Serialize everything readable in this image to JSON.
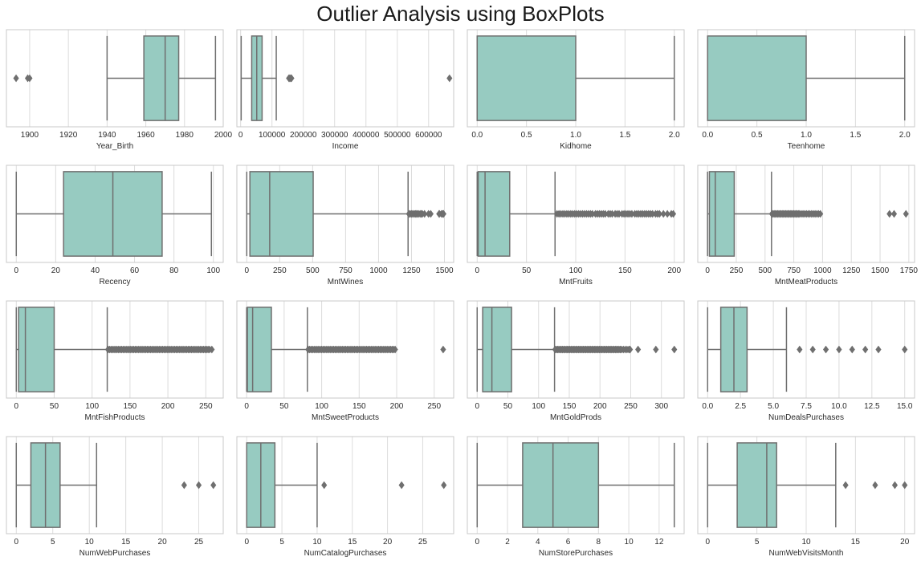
{
  "title": "Outlier Analysis using BoxPlots",
  "colors": {
    "box_fill": "#97cbc1",
    "line": "#6f6f6f",
    "grid": "#dcdcdc",
    "frame": "#c8c8c8",
    "text": "#2b2b2b"
  },
  "chart_data": [
    {
      "type": "box",
      "xlabel": "Year_Birth",
      "xlim": [
        1888,
        2000
      ],
      "ticks": [
        1900,
        1920,
        1940,
        1960,
        1980,
        2000
      ],
      "box": {
        "whisker_low": 1940,
        "q1": 1959,
        "median": 1970,
        "q3": 1977,
        "whisker_high": 1996
      },
      "outliers": [
        1893,
        1899,
        1900
      ]
    },
    {
      "type": "box",
      "xlabel": "Income",
      "xlim": [
        -12000,
        680000
      ],
      "ticks": [
        0,
        100000,
        200000,
        300000,
        400000,
        500000,
        600000
      ],
      "box": {
        "whisker_low": 1730,
        "q1": 35300,
        "median": 51400,
        "q3": 68500,
        "whisker_high": 113700
      },
      "outliers": [
        153924,
        156924,
        157146,
        157243,
        160803,
        162397,
        666666
      ]
    },
    {
      "type": "box",
      "xlabel": "Kidhome",
      "xlim": [
        -0.1,
        2.1
      ],
      "ticks": [
        0.0,
        0.5,
        1.0,
        1.5,
        2.0
      ],
      "box": {
        "whisker_low": 0,
        "q1": 0,
        "median": 0,
        "q3": 1,
        "whisker_high": 2
      },
      "outliers": []
    },
    {
      "type": "box",
      "xlabel": "Teenhome",
      "xlim": [
        -0.1,
        2.1
      ],
      "ticks": [
        0.0,
        0.5,
        1.0,
        1.5,
        2.0
      ],
      "box": {
        "whisker_low": 0,
        "q1": 0,
        "median": 0,
        "q3": 1,
        "whisker_high": 2
      },
      "outliers": []
    },
    {
      "type": "box",
      "xlabel": "Recency",
      "xlim": [
        -5,
        105
      ],
      "ticks": [
        0,
        20,
        40,
        60,
        80,
        100
      ],
      "box": {
        "whisker_low": 0,
        "q1": 24,
        "median": 49,
        "q3": 74,
        "whisker_high": 99
      },
      "outliers": []
    },
    {
      "type": "box",
      "xlabel": "MntWines",
      "xlim": [
        -75,
        1570
      ],
      "ticks": [
        0,
        250,
        500,
        750,
        1000,
        1250,
        1500
      ],
      "box": {
        "whisker_low": 0,
        "q1": 24,
        "median": 174,
        "q3": 504,
        "whisker_high": 1224
      },
      "outliers": [
        1230,
        1240,
        1250,
        1259,
        1270,
        1279,
        1285,
        1296,
        1302,
        1315,
        1324,
        1332,
        1349,
        1379,
        1396,
        1459,
        1462,
        1478,
        1486,
        1492,
        1493
      ]
    },
    {
      "type": "box",
      "xlabel": "MntFruits",
      "xlim": [
        -10,
        210
      ],
      "ticks": [
        0,
        50,
        100,
        150,
        200
      ],
      "box": {
        "whisker_low": 0,
        "q1": 1,
        "median": 8,
        "q3": 33,
        "whisker_high": 79
      },
      "outliers": [
        81,
        83,
        85,
        87,
        89,
        91,
        93,
        95,
        97,
        99,
        101,
        103,
        105,
        107,
        109,
        111,
        113,
        115,
        117,
        120,
        122,
        124,
        126,
        128,
        130,
        133,
        135,
        137,
        140,
        142,
        144,
        147,
        149,
        151,
        153,
        155,
        157,
        160,
        162,
        164,
        166,
        168,
        170,
        172,
        174,
        176,
        178,
        181,
        183,
        185,
        189,
        193,
        197,
        199
      ]
    },
    {
      "type": "box",
      "xlabel": "MntMeatProducts",
      "xlim": [
        -85,
        1800
      ],
      "ticks": [
        0,
        250,
        500,
        750,
        1000,
        1250,
        1500,
        1750
      ],
      "box": {
        "whisker_low": 0,
        "q1": 16,
        "median": 67,
        "q3": 232,
        "whisker_high": 556
      },
      "outliers": [
        560,
        570,
        580,
        590,
        600,
        610,
        620,
        630,
        640,
        650,
        660,
        670,
        680,
        690,
        700,
        710,
        720,
        730,
        740,
        750,
        760,
        770,
        780,
        790,
        800,
        815,
        830,
        845,
        860,
        875,
        890,
        905,
        920,
        935,
        950,
        965,
        981,
        1582,
        1622,
        1725
      ]
    },
    {
      "type": "box",
      "xlabel": "MntFishProducts",
      "xlim": [
        -13,
        273
      ],
      "ticks": [
        0,
        50,
        100,
        150,
        200,
        250
      ],
      "box": {
        "whisker_low": 0,
        "q1": 3,
        "median": 12,
        "q3": 50,
        "whisker_high": 120
      },
      "outliers": [
        121,
        123,
        125,
        127,
        129,
        131,
        133,
        135,
        137,
        139,
        141,
        143,
        145,
        147,
        149,
        151,
        153,
        155,
        157,
        159,
        161,
        163,
        165,
        167,
        169,
        171,
        173,
        175,
        177,
        179,
        181,
        183,
        185,
        187,
        189,
        191,
        193,
        195,
        197,
        199,
        201,
        203,
        205,
        207,
        209,
        211,
        213,
        215,
        217,
        219,
        221,
        223,
        225,
        227,
        229,
        231,
        233,
        235,
        237,
        239,
        241,
        243,
        245,
        247,
        249,
        251,
        253,
        255,
        258
      ]
    },
    {
      "type": "box",
      "xlabel": "MntSweetProducts",
      "xlim": [
        -13,
        276
      ],
      "ticks": [
        0,
        50,
        100,
        150,
        200,
        250
      ],
      "box": {
        "whisker_low": 0,
        "q1": 1,
        "median": 8,
        "q3": 33,
        "whisker_high": 81
      },
      "outliers": [
        82,
        84,
        86,
        88,
        90,
        92,
        94,
        96,
        98,
        100,
        102,
        104,
        106,
        108,
        110,
        112,
        114,
        116,
        118,
        120,
        122,
        124,
        126,
        128,
        130,
        132,
        134,
        136,
        138,
        140,
        142,
        144,
        146,
        148,
        150,
        152,
        154,
        156,
        158,
        160,
        162,
        164,
        166,
        168,
        170,
        172,
        174,
        176,
        178,
        180,
        182,
        184,
        186,
        188,
        190,
        192,
        194,
        196,
        198,
        262
      ]
    },
    {
      "type": "box",
      "xlabel": "MntGoldProds",
      "xlim": [
        -16,
        337
      ],
      "ticks": [
        0,
        50,
        100,
        150,
        200,
        250,
        300
      ],
      "box": {
        "whisker_low": 0,
        "q1": 9,
        "median": 24,
        "q3": 56,
        "whisker_high": 126
      },
      "outliers": [
        127,
        129,
        131,
        133,
        135,
        137,
        139,
        141,
        143,
        145,
        147,
        149,
        151,
        153,
        155,
        157,
        159,
        161,
        163,
        165,
        167,
        169,
        171,
        173,
        175,
        177,
        179,
        181,
        183,
        185,
        187,
        189,
        191,
        193,
        195,
        197,
        199,
        201,
        203,
        205,
        207,
        209,
        211,
        213,
        215,
        217,
        219,
        221,
        223,
        225,
        227,
        229,
        231,
        233,
        235,
        238,
        241,
        244,
        247,
        249,
        262,
        291,
        321
      ]
    },
    {
      "type": "box",
      "xlabel": "NumDealsPurchases",
      "xlim": [
        -0.75,
        15.75
      ],
      "ticks": [
        0.0,
        2.5,
        5.0,
        7.5,
        10.0,
        12.5,
        15.0
      ],
      "box": {
        "whisker_low": 0,
        "q1": 1,
        "median": 2,
        "q3": 3,
        "whisker_high": 6
      },
      "outliers": [
        7,
        8,
        9,
        10,
        11,
        12,
        13,
        15
      ]
    },
    {
      "type": "box",
      "xlabel": "NumWebPurchases",
      "xlim": [
        -1.35,
        28.35
      ],
      "ticks": [
        0,
        5,
        10,
        15,
        20,
        25
      ],
      "box": {
        "whisker_low": 0,
        "q1": 2,
        "median": 4,
        "q3": 6,
        "whisker_high": 11
      },
      "outliers": [
        23,
        25,
        27
      ]
    },
    {
      "type": "box",
      "xlabel": "NumCatalogPurchases",
      "xlim": [
        -1.4,
        29.4
      ],
      "ticks": [
        0,
        5,
        10,
        15,
        20,
        25
      ],
      "box": {
        "whisker_low": 0,
        "q1": 0,
        "median": 2,
        "q3": 4,
        "whisker_high": 10
      },
      "outliers": [
        11,
        22,
        28
      ]
    },
    {
      "type": "box",
      "xlabel": "NumStorePurchases",
      "xlim": [
        -0.65,
        13.65
      ],
      "ticks": [
        0,
        2,
        4,
        6,
        8,
        10,
        12
      ],
      "box": {
        "whisker_low": 0,
        "q1": 3,
        "median": 5,
        "q3": 8,
        "whisker_high": 13
      },
      "outliers": []
    },
    {
      "type": "box",
      "xlabel": "NumWebVisitsMonth",
      "xlim": [
        -1,
        21
      ],
      "ticks": [
        0,
        5,
        10,
        15,
        20
      ],
      "box": {
        "whisker_low": 0,
        "q1": 3,
        "median": 6,
        "q3": 7,
        "whisker_high": 13
      },
      "outliers": [
        14,
        17,
        19,
        20
      ]
    }
  ]
}
